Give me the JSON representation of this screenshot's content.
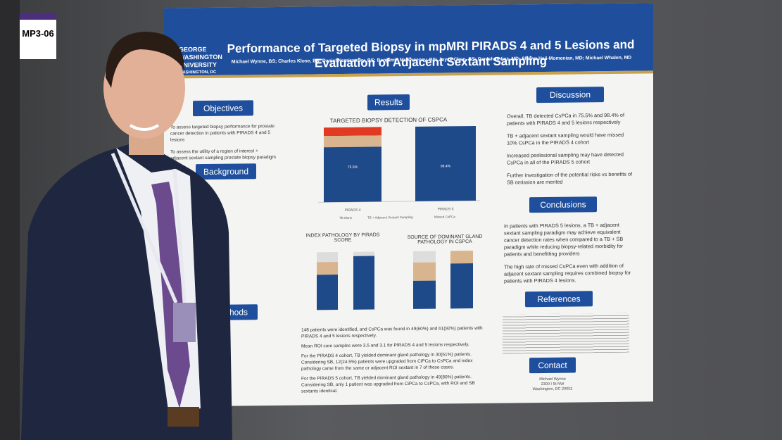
{
  "badge": "MP3-06",
  "poster": {
    "logo": [
      "GEORGE",
      "WASHINGTON",
      "UNIVERSITY",
      "WASHINGTON, DC"
    ],
    "title": [
      "Performance of Targeted Biopsy in mpMRI PIRADS 4 and 5 Lesions and",
      "Evaluation of Adjacent Sextant Sampling"
    ],
    "authors": "Michael Wynne, BS; Charles Klose, BS; Daniel Nemirovsky, BS; Benjamin McSweeney, BS; Joyce Chen, BS; Danish Imtiaz, MD; Shawn Haji-Momenian, MD; Michael Whalen, MD",
    "objectives": {
      "heading": "Objectives",
      "items": [
        "To assess targeted biopsy performance for prostate cancer detection in patients with PIRADS 4 and 5 lesions",
        "To assess the utility of a region of interest + adjacent sextant sampling prostate biopsy paradigm"
      ]
    },
    "background": {
      "heading": "Background"
    },
    "methods": {
      "heading": "Methods"
    },
    "results": {
      "heading": "Results",
      "chart1": {
        "title": "TARGETED BIOPSY DETECTION OF CSPCA",
        "labels": [
          "75.5%",
          "98.4%"
        ],
        "categories": [
          "PIRADS 4",
          "PIRADS 5"
        ],
        "legend": [
          "TB Alone",
          "TB + Adjacent Sextant Sampling",
          "Missed CsPCa"
        ]
      },
      "chart2": {
        "title": [
          "INDEX PATHOLOGY BY PIRADS",
          "SCORE"
        ]
      },
      "chart3": {
        "title": [
          "SOURCE OF DOMINANT GLAND",
          "PATHOLOGY IN CSPCA"
        ]
      },
      "text": [
        "148 patients were identified, and CsPCa was found in 49(60%) and 61(92%) patients with PIRADS 4 and 5 lesions respectively.",
        "Mean ROI core samples were 3.5 and 3.1 for PIRADS 4 and 5 lesions respectively.",
        "For the PIRADS 4 cohort, TB yielded dominant gland pathology in 30(61%) patients. Considering SB, 12(24.5%) patients were upgraded from CiPCa to CsPCa and index pathology came from the same or adjacent ROI sextant in 7 of these cases.",
        "For the PIRADS 5 cohort, TB yielded dominant gland pathology in 49(80%) patients. Considering SB, only 1 patient was upgraded from CiPCa to CsPCa, with ROI and SB sextants identical."
      ]
    },
    "discussion": {
      "heading": "Discussion",
      "items": [
        "Overall, TB detected CsPCa in 75.5% and 98.4% of patients with PIRADS 4 and 5 lesions respectively",
        "TB + adjacent sextant sampling would have missed 10% CsPCa in the PIRADS 4 cohort",
        "Increased perilesional sampling may have detected CsPCa in all of the PIRADS 5 cohort",
        "Further investigation of the potential risks vs benefits of SB omission are merited"
      ]
    },
    "conclusions": {
      "heading": "Conclusions",
      "items": [
        "In patients with PIRADS 5 lesions, a TB + adjacent sextant sampling paradigm may achieve equivalent cancer detection rates when compared to a TB + SB paradigm while reducing biopsy-related morbidity for patients and benefitting providers",
        "The high rate of missed CsPCa even with addition of adjacent sextant sampling requires combined biopsy for patients with PIRADS 4 lesions."
      ]
    },
    "references": {
      "heading": "References"
    },
    "contact": {
      "heading": "Contact",
      "lines": [
        "Michael Wynne",
        "2300 I St NW",
        "Washington, DC 20052"
      ]
    }
  }
}
